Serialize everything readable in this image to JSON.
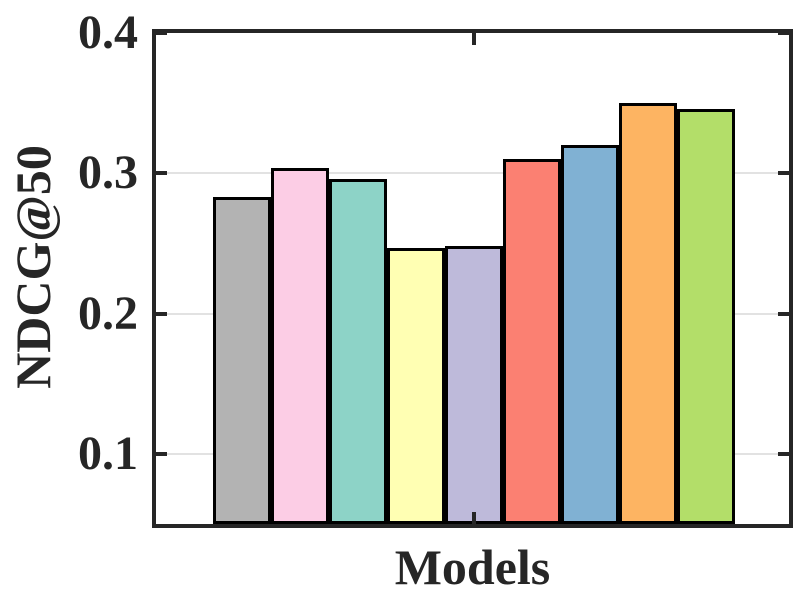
{
  "chart_data": {
    "type": "bar",
    "title": "",
    "xlabel": "Models",
    "ylabel": "NDCG@50",
    "x_categories": [
      "Models"
    ],
    "values": [
      0.283,
      0.304,
      0.296,
      0.247,
      0.248,
      0.31,
      0.32,
      0.35,
      0.346
    ],
    "bar_colors": [
      "#b3b3b3",
      "#fccde5",
      "#8dd3c7",
      "#ffffb3",
      "#bebada",
      "#fb8072",
      "#80b1d3",
      "#fdb462",
      "#b3de69"
    ],
    "bar_edge_color": "#000000",
    "ylim": [
      0.05,
      0.4
    ],
    "yticks": [
      0.1,
      0.2,
      0.3,
      0.4
    ],
    "ytick_labels": [
      "0.1",
      "0.2",
      "0.3",
      "0.4"
    ],
    "grid": "horizontal-y",
    "grid_color": "#e2e2e2",
    "axis_color": "#262626",
    "text_color": "#262626",
    "legend": "none",
    "background": "#ffffff"
  }
}
